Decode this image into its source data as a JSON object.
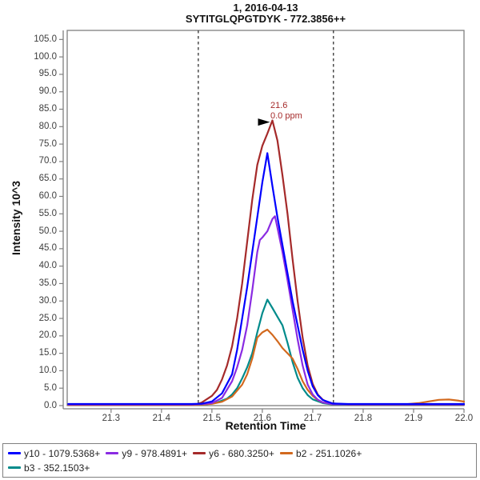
{
  "window": {
    "title": "1, 2016-04-13",
    "subtitle": "SYTITGLQPGTDYK - 772.3856++"
  },
  "colors": {
    "background": "#FFFFFF",
    "axis": "#808080",
    "tick_label": "#3d3d3d",
    "title_text": "#111111",
    "boundary_line": "#3f3f3f",
    "arrow": "#000000"
  },
  "chart_data": {
    "type": "line",
    "title": "1, 2016-04-13",
    "subtitle": "SYTITGLQPGTDYK - 772.3856++",
    "xlabel": "Retention Time",
    "ylabel": "Intensity 10^3",
    "xlim": [
      21.213,
      22.0
    ],
    "ylim": [
      0,
      107.6
    ],
    "grid": false,
    "legend_position": "bottom",
    "x_ticks": {
      "values": [
        21.3,
        21.4,
        21.5,
        21.6,
        21.7,
        21.8,
        21.9,
        22.0
      ],
      "labels": [
        "21.3",
        "21.4",
        "21.5",
        "21.6",
        "21.7",
        "21.8",
        "21.9",
        "22.0"
      ]
    },
    "y_ticks": {
      "values": [
        0,
        5,
        10,
        15,
        20,
        25,
        30,
        35,
        40,
        45,
        50,
        55,
        60,
        65,
        70,
        75,
        80,
        85,
        90,
        95,
        100,
        105
      ],
      "labels": [
        "0.0",
        "5.0",
        "10.0",
        "15.0",
        "20.0",
        "25.0",
        "30.0",
        "35.0",
        "40.0",
        "45.0",
        "50.0",
        "55.0",
        "60.0",
        "65.0",
        "70.0",
        "75.0",
        "80.0",
        "85.0",
        "90.0",
        "95.0",
        "100.0",
        "105.0"
      ]
    },
    "peak_boundaries": [
      21.473,
      21.741
    ],
    "annotation": {
      "lines": [
        "21.6",
        "0.0 ppm"
      ],
      "anchor_x": 21.62,
      "anchor_y": 82,
      "color": "#A52A2A"
    },
    "series": [
      {
        "id": "y10",
        "name": "y10 - 1079.5368+",
        "color": "#0000FF",
        "points": [
          [
            21.215,
            0.45
          ],
          [
            21.3,
            0.45
          ],
          [
            21.4,
            0.45
          ],
          [
            21.46,
            0.45
          ],
          [
            21.48,
            0.55
          ],
          [
            21.5,
            1.2
          ],
          [
            21.52,
            3.5
          ],
          [
            21.54,
            9
          ],
          [
            21.55,
            16
          ],
          [
            21.56,
            25
          ],
          [
            21.57,
            34
          ],
          [
            21.58,
            44
          ],
          [
            21.59,
            54
          ],
          [
            21.6,
            64
          ],
          [
            21.61,
            72.4
          ],
          [
            21.62,
            63
          ],
          [
            21.63,
            54
          ],
          [
            21.64,
            46
          ],
          [
            21.65,
            38
          ],
          [
            21.66,
            30
          ],
          [
            21.67,
            23
          ],
          [
            21.68,
            16
          ],
          [
            21.69,
            10
          ],
          [
            21.7,
            5.5
          ],
          [
            21.71,
            3
          ],
          [
            21.72,
            1.6
          ],
          [
            21.74,
            0.6
          ],
          [
            21.77,
            0.45
          ],
          [
            21.85,
            0.45
          ],
          [
            21.95,
            0.45
          ],
          [
            22.0,
            0.45
          ]
        ]
      },
      {
        "id": "y9",
        "name": "y9 - 978.4891+",
        "color": "#8A2BE2",
        "points": [
          [
            21.215,
            0.35
          ],
          [
            21.46,
            0.35
          ],
          [
            21.48,
            0.45
          ],
          [
            21.5,
            0.7
          ],
          [
            21.52,
            2.2
          ],
          [
            21.54,
            7
          ],
          [
            21.55,
            11
          ],
          [
            21.56,
            16
          ],
          [
            21.57,
            23
          ],
          [
            21.58,
            33
          ],
          [
            21.59,
            44
          ],
          [
            21.595,
            47.5
          ],
          [
            21.6,
            48.2
          ],
          [
            21.61,
            50
          ],
          [
            21.62,
            53.5
          ],
          [
            21.625,
            54.3
          ],
          [
            21.63,
            51
          ],
          [
            21.64,
            44
          ],
          [
            21.65,
            36
          ],
          [
            21.66,
            27.5
          ],
          [
            21.67,
            19
          ],
          [
            21.68,
            11.5
          ],
          [
            21.69,
            6
          ],
          [
            21.7,
            3.2
          ],
          [
            21.71,
            1.7
          ],
          [
            21.72,
            0.9
          ],
          [
            21.74,
            0.4
          ],
          [
            21.78,
            0.35
          ],
          [
            21.9,
            0.35
          ],
          [
            22.0,
            0.35
          ]
        ]
      },
      {
        "id": "y6",
        "name": "y6 - 680.3250+",
        "color": "#A52A2A",
        "points": [
          [
            21.215,
            0.3
          ],
          [
            21.35,
            0.3
          ],
          [
            21.46,
            0.3
          ],
          [
            21.47,
            0.4
          ],
          [
            21.48,
            0.9
          ],
          [
            21.5,
            2.8
          ],
          [
            21.51,
            4.5
          ],
          [
            21.52,
            7.5
          ],
          [
            21.53,
            11.5
          ],
          [
            21.54,
            17
          ],
          [
            21.55,
            25
          ],
          [
            21.56,
            35
          ],
          [
            21.57,
            47
          ],
          [
            21.58,
            59
          ],
          [
            21.59,
            69
          ],
          [
            21.6,
            74.5
          ],
          [
            21.61,
            78
          ],
          [
            21.62,
            81.8
          ],
          [
            21.63,
            76
          ],
          [
            21.64,
            66
          ],
          [
            21.65,
            55
          ],
          [
            21.66,
            42
          ],
          [
            21.67,
            30
          ],
          [
            21.68,
            19.5
          ],
          [
            21.69,
            11.5
          ],
          [
            21.7,
            6.2
          ],
          [
            21.71,
            3.2
          ],
          [
            21.72,
            1.7
          ],
          [
            21.73,
            0.9
          ],
          [
            21.74,
            0.6
          ],
          [
            21.77,
            0.35
          ],
          [
            21.9,
            0.3
          ],
          [
            22.0,
            0.3
          ]
        ]
      },
      {
        "id": "b2",
        "name": "b2 - 251.1026+",
        "color": "#D2691E",
        "points": [
          [
            21.215,
            0.2
          ],
          [
            21.46,
            0.2
          ],
          [
            21.48,
            0.3
          ],
          [
            21.5,
            0.5
          ],
          [
            21.52,
            1.1
          ],
          [
            21.54,
            2.6
          ],
          [
            21.56,
            6
          ],
          [
            21.57,
            9
          ],
          [
            21.58,
            13.5
          ],
          [
            21.59,
            19.5
          ],
          [
            21.6,
            21
          ],
          [
            21.61,
            21.8
          ],
          [
            21.62,
            20.3
          ],
          [
            21.63,
            18.5
          ],
          [
            21.64,
            16.5
          ],
          [
            21.65,
            15
          ],
          [
            21.66,
            13.5
          ],
          [
            21.67,
            10.5
          ],
          [
            21.68,
            7
          ],
          [
            21.69,
            4.5
          ],
          [
            21.7,
            2.8
          ],
          [
            21.71,
            1.6
          ],
          [
            21.72,
            0.9
          ],
          [
            21.74,
            0.4
          ],
          [
            21.78,
            0.3
          ],
          [
            21.88,
            0.35
          ],
          [
            21.91,
            0.7
          ],
          [
            21.93,
            1.2
          ],
          [
            21.95,
            1.65
          ],
          [
            21.97,
            1.75
          ],
          [
            21.99,
            1.4
          ],
          [
            22.0,
            1.15
          ]
        ]
      },
      {
        "id": "b3",
        "name": "b3 - 352.1503+",
        "color": "#008B8B",
        "points": [
          [
            21.215,
            0.25
          ],
          [
            21.47,
            0.25
          ],
          [
            21.49,
            0.4
          ],
          [
            21.51,
            0.9
          ],
          [
            21.53,
            2
          ],
          [
            21.54,
            3.2
          ],
          [
            21.55,
            5
          ],
          [
            21.56,
            7.8
          ],
          [
            21.57,
            11
          ],
          [
            21.58,
            15
          ],
          [
            21.59,
            21
          ],
          [
            21.6,
            26.5
          ],
          [
            21.61,
            30.4
          ],
          [
            21.62,
            28
          ],
          [
            21.63,
            25.5
          ],
          [
            21.64,
            23
          ],
          [
            21.65,
            18
          ],
          [
            21.66,
            12.5
          ],
          [
            21.67,
            8
          ],
          [
            21.68,
            5
          ],
          [
            21.69,
            3
          ],
          [
            21.7,
            1.8
          ],
          [
            21.72,
            0.7
          ],
          [
            21.74,
            0.3
          ],
          [
            21.8,
            0.25
          ],
          [
            22.0,
            0.25
          ]
        ]
      }
    ]
  }
}
